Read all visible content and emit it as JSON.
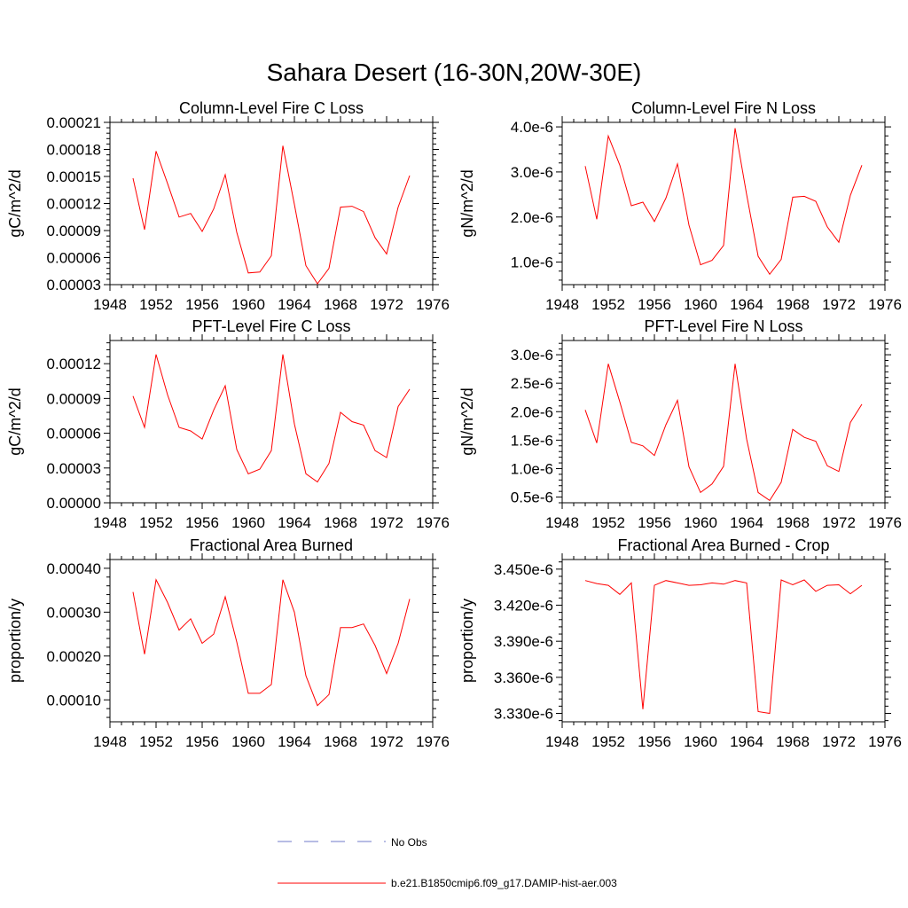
{
  "figure": {
    "title": "Sahara Desert (16-30N,20W-30E)"
  },
  "legend": {
    "items": [
      {
        "label": "No Obs",
        "style": "dashed",
        "color": "#6f78c8"
      },
      {
        "label": "b.e21.B1850cmip6.f09_g17.DAMIP-hist-aer.003",
        "style": "solid",
        "color": "#ff0000"
      }
    ]
  },
  "colors": {
    "series": "#ff0000",
    "axes": "#000000"
  },
  "chart_data": [
    {
      "type": "line",
      "title": "Column-Level Fire C Loss",
      "xlabel": "",
      "ylabel": "gC/m^2/d",
      "xlim": [
        1948,
        1976
      ],
      "xticks": [
        1948,
        1952,
        1956,
        1960,
        1964,
        1968,
        1972,
        1976
      ],
      "ylim": [
        3e-05,
        0.00021
      ],
      "yticks": [
        3e-05,
        6e-05,
        9e-05,
        0.00012,
        0.00015,
        0.00018,
        0.00021
      ],
      "ytick_labels": [
        "0.00003",
        "0.00006",
        "0.00009",
        "0.00012",
        "0.00015",
        "0.00018",
        "0.00021"
      ],
      "x": [
        1950,
        1951,
        1952,
        1953,
        1954,
        1955,
        1956,
        1957,
        1958,
        1959,
        1960,
        1961,
        1962,
        1963,
        1964,
        1965,
        1966,
        1967,
        1968,
        1969,
        1970,
        1971,
        1972,
        1973,
        1974
      ],
      "series": [
        {
          "values": [
            0.000148,
            9.1e-05,
            0.000178,
            0.000142,
            0.000105,
            0.000109,
            8.9e-05,
            0.000114,
            0.000152,
            8.8e-05,
            4.3e-05,
            4.4e-05,
            6.2e-05,
            0.000184,
            0.000119,
            5.1e-05,
            3.1e-05,
            4.8e-05,
            0.000116,
            0.000117,
            0.000111,
            8.2e-05,
            6.4e-05,
            0.000116,
            0.000151
          ],
          "color": "#ff0000"
        }
      ]
    },
    {
      "type": "line",
      "title": "Column-Level Fire N Loss",
      "xlabel": "",
      "ylabel": "gN/m^2/d",
      "xlim": [
        1948,
        1976
      ],
      "xticks": [
        1948,
        1952,
        1956,
        1960,
        1964,
        1968,
        1972,
        1976
      ],
      "ylim": [
        5e-07,
        4.1e-06
      ],
      "yticks": [
        1e-06,
        2e-06,
        3e-06,
        4e-06
      ],
      "ytick_labels": [
        "1.0e-6",
        "2.0e-6",
        "3.0e-6",
        "4.0e-6"
      ],
      "x": [
        1950,
        1951,
        1952,
        1953,
        1954,
        1955,
        1956,
        1957,
        1958,
        1959,
        1960,
        1961,
        1962,
        1963,
        1964,
        1965,
        1966,
        1967,
        1968,
        1969,
        1970,
        1971,
        1972,
        1973,
        1974
      ],
      "series": [
        {
          "values": [
            3.13e-06,
            1.95e-06,
            3.8e-06,
            3.15e-06,
            2.25e-06,
            2.33e-06,
            1.9e-06,
            2.42e-06,
            3.18e-06,
            1.82e-06,
            9.4e-07,
            1.04e-06,
            1.37e-06,
            3.97e-06,
            2.5e-06,
            1.13e-06,
            7.3e-07,
            1.06e-06,
            2.44e-06,
            2.46e-06,
            2.35e-06,
            1.78e-06,
            1.44e-06,
            2.48e-06,
            3.15e-06
          ],
          "color": "#ff0000"
        }
      ]
    },
    {
      "type": "line",
      "title": "PFT-Level Fire C Loss",
      "xlabel": "",
      "ylabel": "gC/m^2/d",
      "xlim": [
        1948,
        1976
      ],
      "xticks": [
        1948,
        1952,
        1956,
        1960,
        1964,
        1968,
        1972,
        1976
      ],
      "ylim": [
        0,
        0.00014
      ],
      "yticks": [
        0,
        3e-05,
        6e-05,
        9e-05,
        0.00012
      ],
      "ytick_labels": [
        "0.00000",
        "0.00003",
        "0.00006",
        "0.00009",
        "0.00012"
      ],
      "x": [
        1950,
        1951,
        1952,
        1953,
        1954,
        1955,
        1956,
        1957,
        1958,
        1959,
        1960,
        1961,
        1962,
        1963,
        1964,
        1965,
        1966,
        1967,
        1968,
        1969,
        1970,
        1971,
        1972,
        1973,
        1974
      ],
      "series": [
        {
          "values": [
            9.2e-05,
            6.5e-05,
            0.000128,
            9.3e-05,
            6.5e-05,
            6.2e-05,
            5.5e-05,
            8e-05,
            0.000101,
            4.6e-05,
            2.5e-05,
            2.9e-05,
            4.5e-05,
            0.000128,
            6.8e-05,
            2.5e-05,
            1.8e-05,
            3.4e-05,
            7.8e-05,
            7e-05,
            6.7e-05,
            4.5e-05,
            3.9e-05,
            8.3e-05,
            9.8e-05
          ],
          "color": "#ff0000"
        }
      ]
    },
    {
      "type": "line",
      "title": "PFT-Level Fire N Loss",
      "xlabel": "",
      "ylabel": "gN/m^2/d",
      "xlim": [
        1948,
        1976
      ],
      "xticks": [
        1948,
        1952,
        1956,
        1960,
        1964,
        1968,
        1972,
        1976
      ],
      "ylim": [
        4e-07,
        3.25e-06
      ],
      "yticks": [
        5e-07,
        1e-06,
        1.5e-06,
        2e-06,
        2.5e-06,
        3e-06
      ],
      "ytick_labels": [
        "0.5e-6",
        "1.0e-6",
        "1.5e-6",
        "2.0e-6",
        "2.5e-6",
        "3.0e-6"
      ],
      "x": [
        1950,
        1951,
        1952,
        1953,
        1954,
        1955,
        1956,
        1957,
        1958,
        1959,
        1960,
        1961,
        1962,
        1963,
        1964,
        1965,
        1966,
        1967,
        1968,
        1969,
        1970,
        1971,
        1972,
        1973,
        1974
      ],
      "series": [
        {
          "values": [
            2.03e-06,
            1.45e-06,
            2.84e-06,
            2.17e-06,
            1.46e-06,
            1.4e-06,
            1.23e-06,
            1.77e-06,
            2.2e-06,
            1.03e-06,
            5.8e-07,
            7.3e-07,
            1.04e-06,
            2.84e-06,
            1.52e-06,
            5.8e-07,
            4.4e-07,
            7.6e-07,
            1.69e-06,
            1.55e-06,
            1.48e-06,
            1.05e-06,
            9.5e-07,
            1.81e-06,
            2.13e-06
          ],
          "color": "#ff0000"
        }
      ]
    },
    {
      "type": "line",
      "title": "Fractional Area Burned",
      "xlabel": "",
      "ylabel": "proportion/y",
      "xlim": [
        1948,
        1976
      ],
      "xticks": [
        1948,
        1952,
        1956,
        1960,
        1964,
        1968,
        1972,
        1976
      ],
      "ylim": [
        5e-05,
        0.00042
      ],
      "yticks": [
        0.0001,
        0.0002,
        0.0003,
        0.0004
      ],
      "ytick_labels": [
        "0.00010",
        "0.00020",
        "0.00030",
        "0.00040"
      ],
      "x": [
        1950,
        1951,
        1952,
        1953,
        1954,
        1955,
        1956,
        1957,
        1958,
        1959,
        1960,
        1961,
        1962,
        1963,
        1964,
        1965,
        1966,
        1967,
        1968,
        1969,
        1970,
        1971,
        1972,
        1973,
        1974
      ],
      "series": [
        {
          "values": [
            0.000346,
            0.000204,
            0.000374,
            0.000322,
            0.000259,
            0.000285,
            0.000229,
            0.00025,
            0.000335,
            0.000232,
            0.000115,
            0.000115,
            0.000135,
            0.000374,
            0.0003,
            0.000155,
            8.7e-05,
            0.000112,
            0.000265,
            0.000265,
            0.000273,
            0.000224,
            0.00016,
            0.000229,
            0.00033
          ],
          "color": "#ff0000"
        }
      ]
    },
    {
      "type": "line",
      "title": "Fractional Area Burned - Crop",
      "xlabel": "",
      "ylabel": "proportion/y",
      "xlim": [
        1948,
        1976
      ],
      "xticks": [
        1948,
        1952,
        1956,
        1960,
        1964,
        1968,
        1972,
        1976
      ],
      "ylim": [
        3.323e-06,
        3.458e-06
      ],
      "yticks": [
        3.33e-06,
        3.36e-06,
        3.39e-06,
        3.42e-06,
        3.45e-06
      ],
      "ytick_labels": [
        "3.330e-6",
        "3.360e-6",
        "3.390e-6",
        "3.420e-6",
        "3.450e-6"
      ],
      "x": [
        1950,
        1951,
        1952,
        1953,
        1954,
        1955,
        1956,
        1957,
        1958,
        1959,
        1960,
        1961,
        1962,
        1963,
        1964,
        1965,
        1966,
        1967,
        1968,
        1969,
        1970,
        1971,
        1972,
        1973,
        1974
      ],
      "series": [
        {
          "values": [
            3.4405e-06,
            3.438e-06,
            3.4365e-06,
            3.429e-06,
            3.4385e-06,
            3.3335e-06,
            3.4365e-06,
            3.4405e-06,
            3.4385e-06,
            3.4365e-06,
            3.437e-06,
            3.4385e-06,
            3.4375e-06,
            3.4405e-06,
            3.4385e-06,
            3.3315e-06,
            3.33e-06,
            3.441e-06,
            3.437e-06,
            3.441e-06,
            3.4315e-06,
            3.4365e-06,
            3.437e-06,
            3.4295e-06,
            3.4365e-06
          ],
          "color": "#ff0000"
        }
      ]
    }
  ]
}
